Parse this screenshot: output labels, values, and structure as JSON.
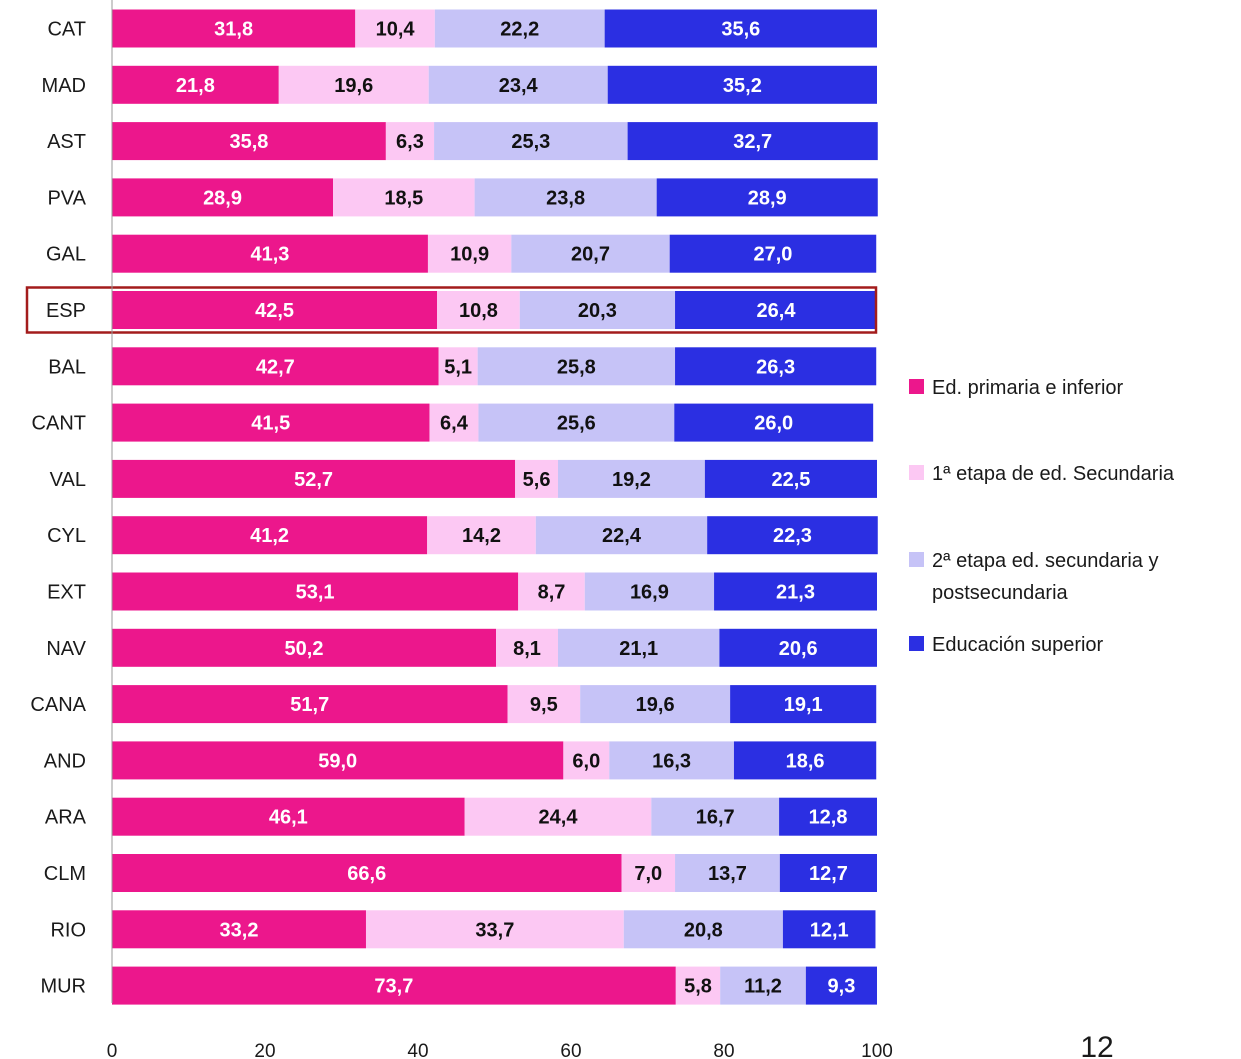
{
  "chart_data": {
    "type": "bar",
    "orientation": "horizontal",
    "stacked": true,
    "categories": [
      "CAT",
      "MAD",
      "AST",
      "PVA",
      "GAL",
      "ESP",
      "BAL",
      "CANT",
      "VAL",
      "CYL",
      "EXT",
      "NAV",
      "CANA",
      "AND",
      "ARA",
      "CLM",
      "RIO",
      "MUR"
    ],
    "series": [
      {
        "name": "Ed. primaria e inferior",
        "color": "#EC178C",
        "label_color": "#ffffff",
        "values": [
          "31,8",
          "21,8",
          "35,8",
          "28,9",
          "41,3",
          "42,5",
          "42,7",
          "41,5",
          "52,7",
          "41,2",
          "53,1",
          "50,2",
          "51,7",
          "59,0",
          "46,1",
          "66,6",
          "33,2",
          "73,7"
        ]
      },
      {
        "name": "1ª etapa de ed. Secundaria",
        "color": "#FCC8F3",
        "label_color": "#111111",
        "values": [
          "10,4",
          "19,6",
          "6,3",
          "18,5",
          "10,9",
          "10,8",
          "5,1",
          "6,4",
          "5,6",
          "14,2",
          "8,7",
          "8,1",
          "9,5",
          "6,0",
          "24,4",
          "7,0",
          "33,7",
          "5,8"
        ]
      },
      {
        "name": "2ª etapa ed. secundaria y postsecundaria",
        "name_lines": [
          "2ª etapa ed. secundaria y",
          "postsecundaria"
        ],
        "color": "#C6C3F7",
        "label_color": "#111111",
        "values": [
          "22,2",
          "23,4",
          "25,3",
          "23,8",
          "20,7",
          "20,3",
          "25,8",
          "25,6",
          "19,2",
          "22,4",
          "16,9",
          "21,1",
          "19,6",
          "16,3",
          "16,7",
          "13,7",
          "20,8",
          "11,2"
        ]
      },
      {
        "name": "Educación superior",
        "color": "#2B2FE2",
        "label_color": "#ffffff",
        "values": [
          "35,6",
          "35,2",
          "32,7",
          "28,9",
          "27,0",
          "26,4",
          "26,3",
          "26,0",
          "22,5",
          "22,3",
          "21,3",
          "20,6",
          "19,1",
          "18,6",
          "12,8",
          "12,7",
          "12,1",
          "9,3"
        ]
      }
    ],
    "xlim": [
      0,
      100
    ],
    "xticks": [
      "0",
      "20",
      "40",
      "60",
      "80",
      "100"
    ],
    "highlight_category": "ESP",
    "highlight_color": "#A31C1C",
    "legend_position": "right",
    "grid": false
  },
  "page_number": "12"
}
